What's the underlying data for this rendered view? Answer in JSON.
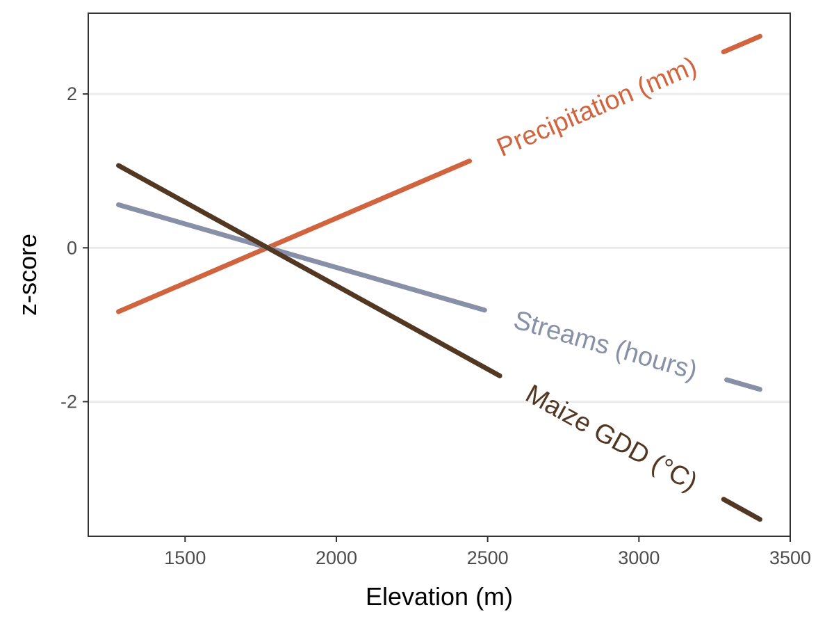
{
  "chart_data": {
    "type": "line",
    "title": "",
    "xlabel": "Elevation (m)",
    "ylabel": "z-score",
    "xlim": [
      1180,
      3500
    ],
    "ylim": [
      -3.75,
      3.05
    ],
    "x_ticks": [
      1500,
      2000,
      2500,
      3000,
      3500
    ],
    "y_ticks": [
      -2,
      0,
      2
    ],
    "y_tick_labels": [
      "-2",
      "0",
      "2"
    ],
    "grid": "horizontal major gridlines",
    "legend": "none (direct labels on lines)",
    "series": [
      {
        "name": "Precipitation (mm)",
        "color": "#d0643f",
        "x": [
          1280,
          3400
        ],
        "y": [
          -0.83,
          2.75
        ],
        "label_x": [
          2440,
          3280
        ]
      },
      {
        "name": "Streams (hours)",
        "color": "#8890a8",
        "x": [
          1280,
          3400
        ],
        "y": [
          0.56,
          -1.84
        ],
        "label_x": [
          2490,
          3290
        ]
      },
      {
        "name": "Maize GDD (°C)",
        "color": "#523823",
        "x": [
          1280,
          3400
        ],
        "y": [
          1.07,
          -3.53
        ],
        "label_x": [
          2540,
          3280
        ]
      }
    ]
  }
}
